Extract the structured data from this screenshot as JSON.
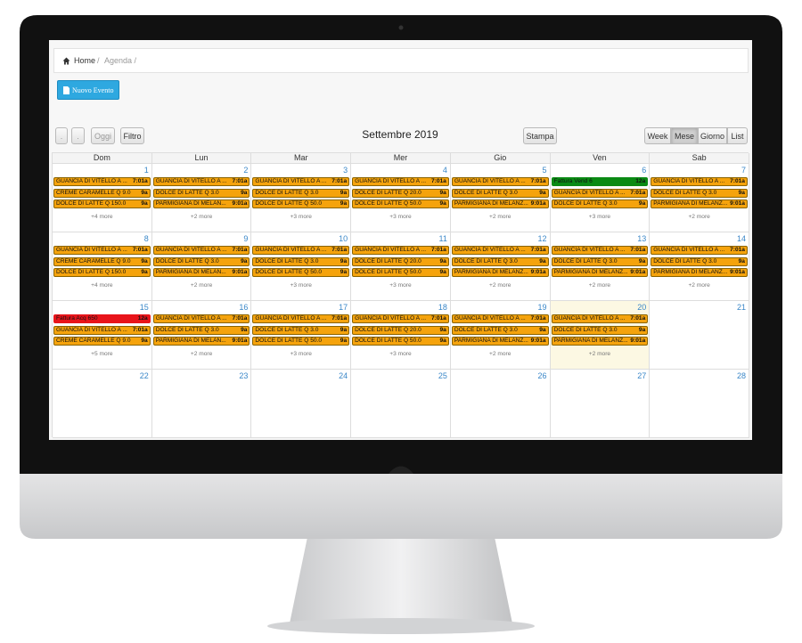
{
  "breadcrumb": {
    "home": "Home",
    "separator": "/",
    "current": "Agenda /"
  },
  "new_event_button": "Nuovo Evento",
  "toolbar": {
    "nav_buttons": [
      ".",
      ".",
      "Oggi",
      "Filtro"
    ],
    "title": "Settembre 2019",
    "print_button": "Stampa",
    "view_buttons": [
      "Week",
      "Mese",
      "Giorno",
      "List"
    ],
    "active_view": "Mese"
  },
  "weekdays": [
    "Dom",
    "Lun",
    "Mar",
    "Mer",
    "Gio",
    "Ven",
    "Sab"
  ],
  "today": 20,
  "weeks": [
    [
      {
        "day": 1,
        "events": [
          {
            "title": "GUANCIA DI VITELLO A ...",
            "time": "7:01a",
            "color": "#f5a30c"
          },
          {
            "title": "CREME CARAMELLE Q 9.0",
            "time": "9a",
            "color": "#f5a30c"
          },
          {
            "title": "DOLCE DI LATTE Q 150.0",
            "time": "9a",
            "color": "#f5a30c"
          }
        ],
        "more": "+4 more"
      },
      {
        "day": 2,
        "events": [
          {
            "title": "GUANCIA DI VITELLO A ...",
            "time": "7:01a",
            "color": "#f5a30c"
          },
          {
            "title": "DOLCE DI LATTE Q 3.0",
            "time": "9a",
            "color": "#f5a30c"
          },
          {
            "title": "PARMIGIANA DI MELAN...",
            "time": "9:01a",
            "color": "#f5a30c"
          }
        ],
        "more": "+2 more"
      },
      {
        "day": 3,
        "events": [
          {
            "title": "GUANCIA DI VITELLO A ...",
            "time": "7:01a",
            "color": "#f5a30c"
          },
          {
            "title": "DOLCE DI LATTE Q 3.0",
            "time": "9a",
            "color": "#f5a30c"
          },
          {
            "title": "DOLCE DI LATTE Q 50.0",
            "time": "9a",
            "color": "#f5a30c"
          }
        ],
        "more": "+3 more"
      },
      {
        "day": 4,
        "events": [
          {
            "title": "GUANCIA DI VITELLO A ...",
            "time": "7:01a",
            "color": "#f5a30c"
          },
          {
            "title": "DOLCE DI LATTE Q 20.0",
            "time": "9a",
            "color": "#f5a30c"
          },
          {
            "title": "DOLCE DI LATTE Q 50.0",
            "time": "9a",
            "color": "#f5a30c"
          }
        ],
        "more": "+3 more"
      },
      {
        "day": 5,
        "events": [
          {
            "title": "GUANCIA DI VITELLO A ...",
            "time": "7:01a",
            "color": "#f5a30c"
          },
          {
            "title": "DOLCE DI LATTE Q 3.0",
            "time": "9a",
            "color": "#f5a30c"
          },
          {
            "title": "PARMIGIANA DI MELANZ...",
            "time": "9:01a",
            "color": "#f5a30c"
          }
        ],
        "more": "+2 more"
      },
      {
        "day": 6,
        "events": [
          {
            "title": "Fattura Vend 6",
            "time": "12a",
            "color": "#0a8a14"
          },
          {
            "title": "GUANCIA DI VITELLO A ...",
            "time": "7:01a",
            "color": "#f5a30c"
          },
          {
            "title": "DOLCE DI LATTE Q 3.0",
            "time": "9a",
            "color": "#f5a30c"
          }
        ],
        "more": "+3 more"
      },
      {
        "day": 7,
        "events": [
          {
            "title": "GUANCIA DI VITELLO A ...",
            "time": "7:01a",
            "color": "#f5a30c"
          },
          {
            "title": "DOLCE DI LATTE Q 3.0",
            "time": "9a",
            "color": "#f5a30c"
          },
          {
            "title": "PARMIGIANA DI MELANZ...",
            "time": "9:01a",
            "color": "#f5a30c"
          }
        ],
        "more": "+2 more"
      }
    ],
    [
      {
        "day": 8,
        "events": [
          {
            "title": "GUANCIA DI VITELLO A ...",
            "time": "7:01a",
            "color": "#f5a30c"
          },
          {
            "title": "CREME CARAMELLE Q 9.0",
            "time": "9a",
            "color": "#f5a30c"
          },
          {
            "title": "DOLCE DI LATTE Q 150.0",
            "time": "9a",
            "color": "#f5a30c"
          }
        ],
        "more": "+4 more"
      },
      {
        "day": 9,
        "events": [
          {
            "title": "GUANCIA DI VITELLO A ...",
            "time": "7:01a",
            "color": "#f5a30c"
          },
          {
            "title": "DOLCE DI LATTE Q 3.0",
            "time": "9a",
            "color": "#f5a30c"
          },
          {
            "title": "PARMIGIANA DI MELAN...",
            "time": "9:01a",
            "color": "#f5a30c"
          }
        ],
        "more": "+2 more"
      },
      {
        "day": 10,
        "events": [
          {
            "title": "GUANCIA DI VITELLO A ...",
            "time": "7:01a",
            "color": "#f5a30c"
          },
          {
            "title": "DOLCE DI LATTE Q 3.0",
            "time": "9a",
            "color": "#f5a30c"
          },
          {
            "title": "DOLCE DI LATTE Q 50.0",
            "time": "9a",
            "color": "#f5a30c"
          }
        ],
        "more": "+3 more"
      },
      {
        "day": 11,
        "events": [
          {
            "title": "GUANCIA DI VITELLO A ...",
            "time": "7:01a",
            "color": "#f5a30c"
          },
          {
            "title": "DOLCE DI LATTE Q 20.0",
            "time": "9a",
            "color": "#f5a30c"
          },
          {
            "title": "DOLCE DI LATTE Q 50.0",
            "time": "9a",
            "color": "#f5a30c"
          }
        ],
        "more": "+3 more"
      },
      {
        "day": 12,
        "events": [
          {
            "title": "GUANCIA DI VITELLO A ...",
            "time": "7:01a",
            "color": "#f5a30c"
          },
          {
            "title": "DOLCE DI LATTE Q 3.0",
            "time": "9a",
            "color": "#f5a30c"
          },
          {
            "title": "PARMIGIANA DI MELANZ...",
            "time": "9:01a",
            "color": "#f5a30c"
          }
        ],
        "more": "+2 more"
      },
      {
        "day": 13,
        "events": [
          {
            "title": "GUANCIA DI VITELLO A ...",
            "time": "7:01a",
            "color": "#f5a30c"
          },
          {
            "title": "DOLCE DI LATTE Q 3.0",
            "time": "9a",
            "color": "#f5a30c"
          },
          {
            "title": "PARMIGIANA DI MELANZ...",
            "time": "9:01a",
            "color": "#f5a30c"
          }
        ],
        "more": "+2 more"
      },
      {
        "day": 14,
        "events": [
          {
            "title": "GUANCIA DI VITELLO A ...",
            "time": "7:01a",
            "color": "#f5a30c"
          },
          {
            "title": "DOLCE DI LATTE Q 3.0",
            "time": "9a",
            "color": "#f5a30c"
          },
          {
            "title": "PARMIGIANA DI MELANZ...",
            "time": "9:01a",
            "color": "#f5a30c"
          }
        ],
        "more": "+2 more"
      }
    ],
    [
      {
        "day": 15,
        "events": [
          {
            "title": "Fattura Acq 650",
            "time": "12a",
            "color": "#e8141a"
          },
          {
            "title": "GUANCIA DI VITELLO A ...",
            "time": "7:01a",
            "color": "#f5a30c"
          },
          {
            "title": "CREME CARAMELLE Q 9.0",
            "time": "9a",
            "color": "#f5a30c"
          }
        ],
        "more": "+5 more"
      },
      {
        "day": 16,
        "events": [
          {
            "title": "GUANCIA DI VITELLO A ...",
            "time": "7:01a",
            "color": "#f5a30c"
          },
          {
            "title": "DOLCE DI LATTE Q 3.0",
            "time": "9a",
            "color": "#f5a30c"
          },
          {
            "title": "PARMIGIANA DI MELAN...",
            "time": "9:01a",
            "color": "#f5a30c"
          }
        ],
        "more": "+2 more"
      },
      {
        "day": 17,
        "events": [
          {
            "title": "GUANCIA DI VITELLO A ...",
            "time": "7:01a",
            "color": "#f5a30c"
          },
          {
            "title": "DOLCE DI LATTE Q 3.0",
            "time": "9a",
            "color": "#f5a30c"
          },
          {
            "title": "DOLCE DI LATTE Q 50.0",
            "time": "9a",
            "color": "#f5a30c"
          }
        ],
        "more": "+3 more"
      },
      {
        "day": 18,
        "events": [
          {
            "title": "GUANCIA DI VITELLO A ...",
            "time": "7:01a",
            "color": "#f5a30c"
          },
          {
            "title": "DOLCE DI LATTE Q 20.0",
            "time": "9a",
            "color": "#f5a30c"
          },
          {
            "title": "DOLCE DI LATTE Q 50.0",
            "time": "9a",
            "color": "#f5a30c"
          }
        ],
        "more": "+3 more"
      },
      {
        "day": 19,
        "events": [
          {
            "title": "GUANCIA DI VITELLO A ...",
            "time": "7:01a",
            "color": "#f5a30c"
          },
          {
            "title": "DOLCE DI LATTE Q 3.0",
            "time": "9a",
            "color": "#f5a30c"
          },
          {
            "title": "PARMIGIANA DI MELANZ...",
            "time": "9:01a",
            "color": "#f5a30c"
          }
        ],
        "more": "+2 more"
      },
      {
        "day": 20,
        "events": [
          {
            "title": "GUANCIA DI VITELLO A ...",
            "time": "7:01a",
            "color": "#f5a30c"
          },
          {
            "title": "DOLCE DI LATTE Q 3.0",
            "time": "9a",
            "color": "#f5a30c"
          },
          {
            "title": "PARMIGIANA DI MELANZ...",
            "time": "9:01a",
            "color": "#f5a30c"
          }
        ],
        "more": "+2 more"
      },
      {
        "day": 21,
        "events": []
      }
    ],
    [
      {
        "day": 22,
        "events": []
      },
      {
        "day": 23,
        "events": []
      },
      {
        "day": 24,
        "events": []
      },
      {
        "day": 25,
        "events": []
      },
      {
        "day": 26,
        "events": []
      },
      {
        "day": 27,
        "events": []
      },
      {
        "day": 28,
        "events": []
      }
    ]
  ]
}
